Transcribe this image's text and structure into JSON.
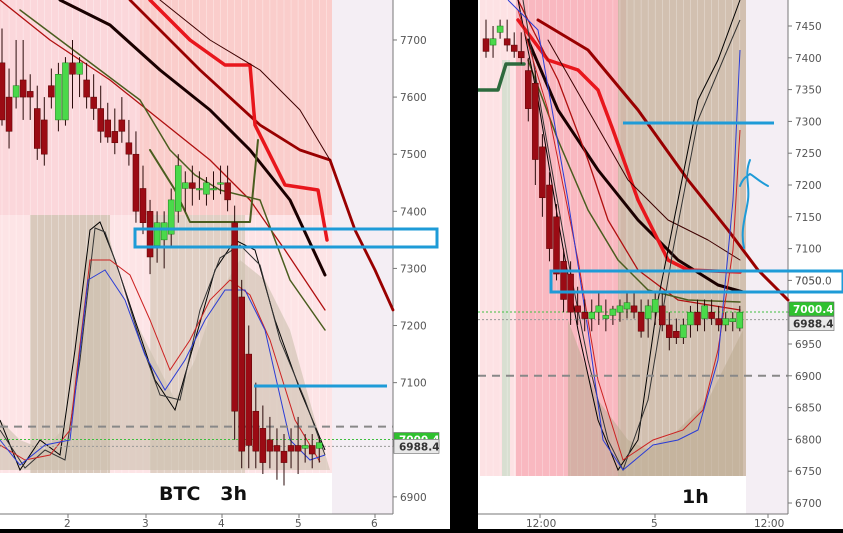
{
  "chart_data": [
    {
      "type": "candlestick",
      "label": "BTC   3h",
      "y_ticks": [
        7700,
        7600,
        7500,
        7400,
        7300,
        7200,
        7100,
        6900
      ],
      "x_ticks": [
        "2",
        "3",
        "4",
        "5",
        "6"
      ],
      "ylim": [
        6870,
        7770
      ],
      "price_tags": [
        {
          "text": "7300.0",
          "value": 7300,
          "style": "box"
        },
        {
          "text": "7000.4",
          "value": 7000.4,
          "style": "green"
        },
        {
          "text": "6988.4",
          "value": 6988.4,
          "style": "gray"
        }
      ],
      "candles": [
        [
          7660,
          7720,
          7550,
          7560
        ],
        [
          7600,
          7650,
          7510,
          7540
        ],
        [
          7600,
          7700,
          7580,
          7620
        ],
        [
          7630,
          7700,
          7560,
          7600
        ],
        [
          7610,
          7640,
          7560,
          7600
        ],
        [
          7580,
          7620,
          7490,
          7510
        ],
        [
          7560,
          7600,
          7480,
          7500
        ],
        [
          7620,
          7650,
          7580,
          7600
        ],
        [
          7560,
          7660,
          7540,
          7640
        ],
        [
          7560,
          7670,
          7550,
          7660
        ],
        [
          7660,
          7700,
          7580,
          7640
        ],
        [
          7640,
          7670,
          7600,
          7660
        ],
        [
          7630,
          7660,
          7580,
          7600
        ],
        [
          7600,
          7640,
          7560,
          7580
        ],
        [
          7580,
          7620,
          7520,
          7540
        ],
        [
          7560,
          7590,
          7520,
          7530
        ],
        [
          7540,
          7580,
          7500,
          7520
        ],
        [
          7560,
          7600,
          7520,
          7540
        ],
        [
          7520,
          7560,
          7480,
          7500
        ],
        [
          7500,
          7540,
          7380,
          7400
        ],
        [
          7440,
          7480,
          7360,
          7380
        ],
        [
          7400,
          7420,
          7290,
          7320
        ],
        [
          7340,
          7400,
          7310,
          7380
        ],
        [
          7350,
          7400,
          7300,
          7380
        ],
        [
          7360,
          7440,
          7340,
          7420
        ],
        [
          7400,
          7500,
          7380,
          7480
        ],
        [
          7440,
          7470,
          7400,
          7450
        ],
        [
          7450,
          7480,
          7410,
          7440
        ],
        [
          7440,
          7470,
          7420,
          7440
        ],
        [
          7430,
          7460,
          7410,
          7450
        ],
        [
          7440,
          7470,
          7420,
          7440
        ],
        [
          7450,
          7480,
          7430,
          7450
        ],
        [
          7450,
          7480,
          7400,
          7420
        ],
        [
          7380,
          7410,
          7000,
          7050
        ],
        [
          7250,
          7280,
          6950,
          6980
        ],
        [
          7150,
          7200,
          6950,
          6990
        ],
        [
          7050,
          7100,
          6950,
          6980
        ],
        [
          7020,
          7060,
          6940,
          6960
        ],
        [
          7000,
          7040,
          6950,
          6980
        ],
        [
          6990,
          7020,
          6930,
          6980
        ],
        [
          6980,
          7010,
          6920,
          6960
        ],
        [
          6990,
          7020,
          6950,
          6980
        ],
        [
          6990,
          7040,
          6940,
          6980
        ],
        [
          6985,
          7010,
          6960,
          6990
        ],
        [
          6990,
          7010,
          6950,
          6975
        ],
        [
          6985,
          7005,
          6960,
          6995
        ]
      ]
    },
    {
      "type": "candlestick",
      "label": "1h",
      "y_ticks": [
        7450,
        7400,
        7350,
        7300,
        7250,
        7200,
        7150,
        7100,
        7050,
        7000,
        6950,
        6900,
        6850,
        6800,
        6750,
        6700
      ],
      "x_ticks": [
        "12:00",
        "5",
        "12:00"
      ],
      "ylim": [
        6680,
        7480
      ],
      "price_tags": [
        {
          "text": "7050.0",
          "value": 7050,
          "style": "box"
        },
        {
          "text": "7000.4",
          "value": 7000.4,
          "style": "green"
        },
        {
          "text": "6988.4",
          "value": 6988.4,
          "style": "gray"
        }
      ],
      "candles": [
        [
          7430,
          7460,
          7400,
          7410
        ],
        [
          7420,
          7450,
          7400,
          7430
        ],
        [
          7440,
          7460,
          7430,
          7450
        ],
        [
          7430,
          7460,
          7410,
          7420
        ],
        [
          7420,
          7440,
          7400,
          7410
        ],
        [
          7410,
          7440,
          7390,
          7400
        ],
        [
          7380,
          7400,
          7300,
          7320
        ],
        [
          7360,
          7380,
          7200,
          7240
        ],
        [
          7260,
          7280,
          7150,
          7180
        ],
        [
          7200,
          7220,
          7080,
          7100
        ],
        [
          7150,
          7170,
          7050,
          7060
        ],
        [
          7080,
          7100,
          7000,
          7020
        ],
        [
          7060,
          7080,
          6980,
          7000
        ],
        [
          7010,
          7040,
          6980,
          7000
        ],
        [
          7000,
          7020,
          6970,
          6990
        ],
        [
          6990,
          7020,
          6970,
          7000
        ],
        [
          7000,
          7030,
          6980,
          7010
        ],
        [
          6990,
          7020,
          6970,
          6995
        ],
        [
          6995,
          7010,
          6980,
          7005
        ],
        [
          7000,
          7020,
          6985,
          7010
        ],
        [
          7005,
          7030,
          6990,
          7015
        ],
        [
          7010,
          7030,
          6990,
          7000
        ],
        [
          7000,
          7020,
          6960,
          6970
        ],
        [
          6990,
          7020,
          6960,
          7010
        ],
        [
          7000,
          7030,
          6980,
          7020
        ],
        [
          7010,
          7030,
          6970,
          6980
        ],
        [
          6980,
          7000,
          6940,
          6960
        ],
        [
          6970,
          6990,
          6950,
          6960
        ],
        [
          6960,
          6990,
          6950,
          6980
        ],
        [
          6980,
          7010,
          6960,
          7000
        ],
        [
          7000,
          7020,
          6970,
          6980
        ],
        [
          6990,
          7020,
          6970,
          7010
        ],
        [
          7000,
          7020,
          6980,
          6990
        ],
        [
          6990,
          7010,
          6970,
          6980
        ],
        [
          6980,
          7000,
          6970,
          6990
        ],
        [
          6985,
          7000,
          6970,
          6990
        ],
        [
          6975,
          7010,
          6970,
          7000
        ]
      ]
    }
  ]
}
